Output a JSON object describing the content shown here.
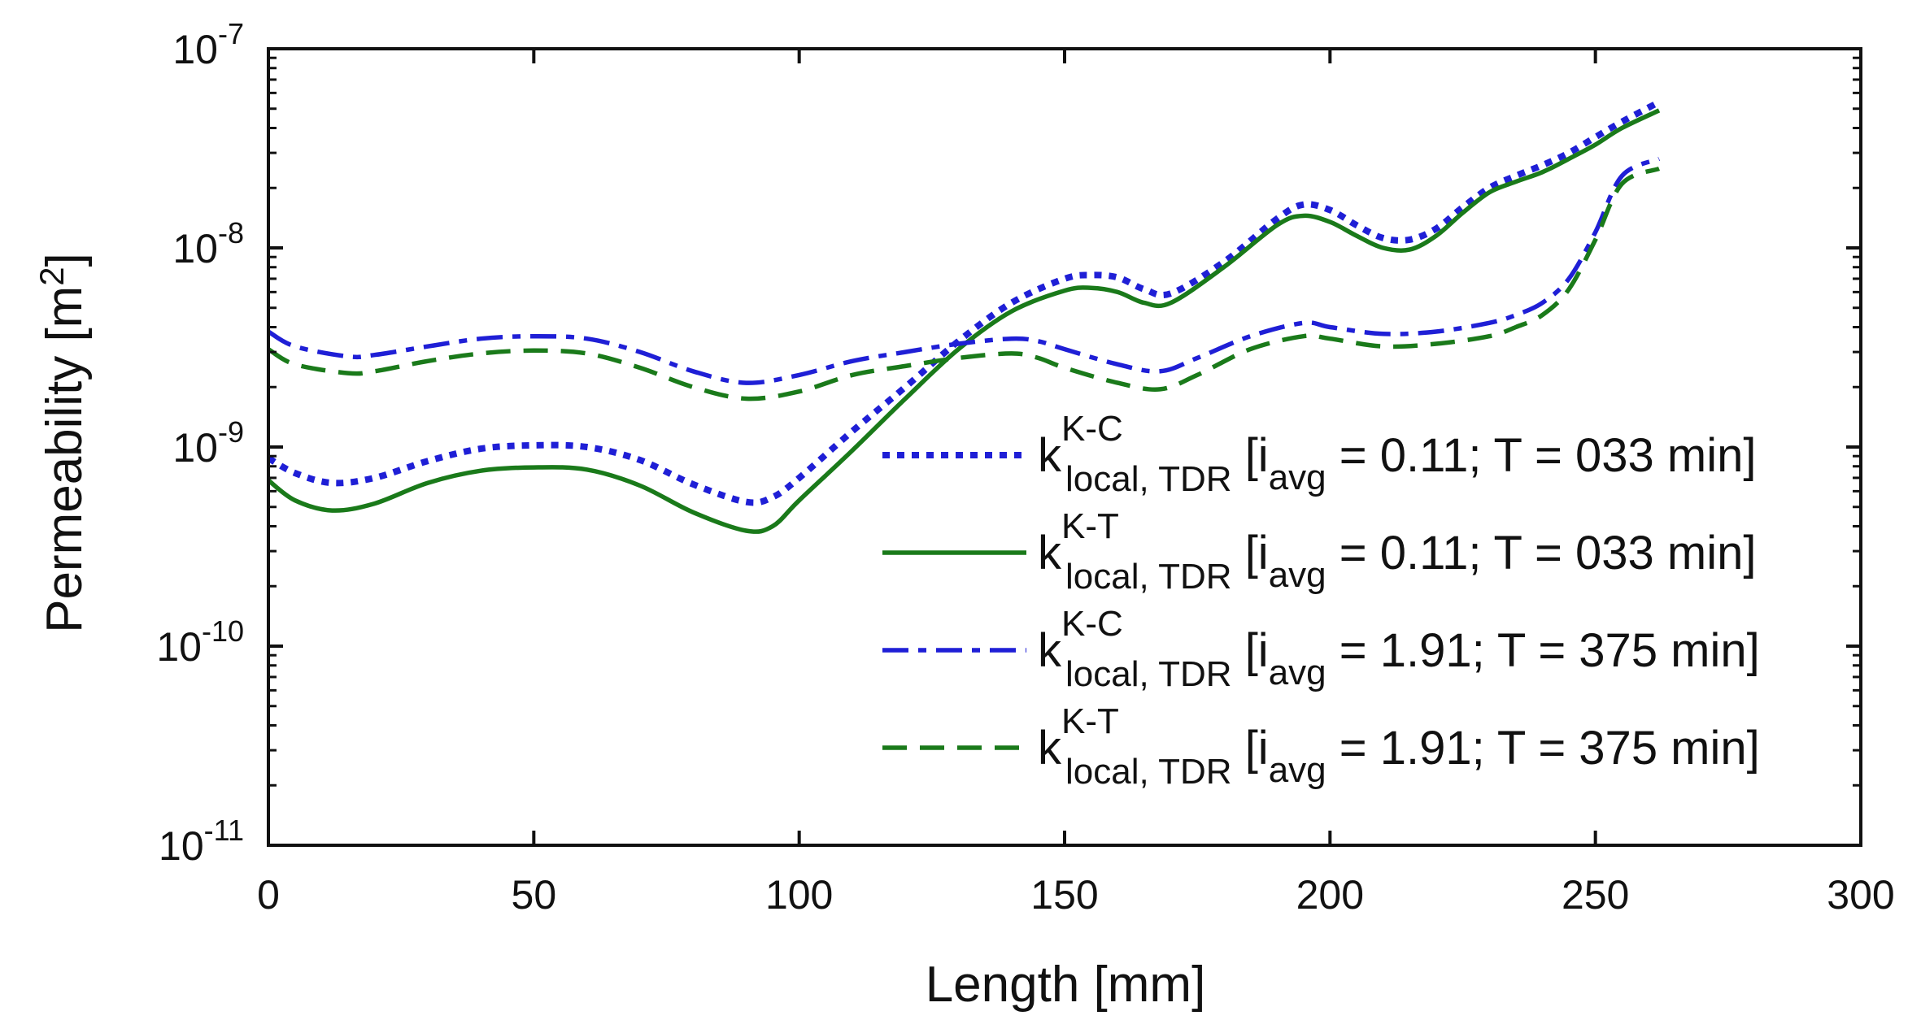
{
  "chart_data": {
    "type": "line",
    "xlabel": "Length [mm]",
    "ylabel_main": "Permeability [m",
    "ylabel_sup": "2",
    "ylabel_close": "]",
    "xlim": [
      0,
      300
    ],
    "ylim": [
      1e-11,
      1e-07
    ],
    "yscale": "log",
    "grid": false,
    "legend_position": "center-right",
    "x_ticks": [
      {
        "value": 0,
        "label": "0"
      },
      {
        "value": 50,
        "label": "50"
      },
      {
        "value": 100,
        "label": "100"
      },
      {
        "value": 150,
        "label": "150"
      },
      {
        "value": 200,
        "label": "200"
      },
      {
        "value": 250,
        "label": "250"
      },
      {
        "value": 300,
        "label": "300"
      }
    ],
    "y_ticks": [
      {
        "value": 1e-11,
        "base": "10",
        "exp": "-11"
      },
      {
        "value": 1e-10,
        "base": "10",
        "exp": "-10"
      },
      {
        "value": 1e-09,
        "base": "10",
        "exp": "-9"
      },
      {
        "value": 1e-08,
        "base": "10",
        "exp": "-8"
      },
      {
        "value": 1e-07,
        "base": "10",
        "exp": "-7"
      }
    ],
    "series": [
      {
        "name": "k K-C local, TDR [i avg = 0.11; T = 033 min]",
        "legend": {
          "k": "k",
          "sup": "K-C",
          "sub": "local, TDR",
          "open": " [i",
          "avg": "avg",
          "rest": " = 0.11; T = 033 min]"
        },
        "color": "#1f1fd6",
        "style": "dotted",
        "x": [
          0,
          5,
          12,
          20,
          30,
          40,
          50,
          60,
          70,
          80,
          90,
          95,
          100,
          110,
          120,
          130,
          140,
          150,
          155,
          160,
          165,
          170,
          180,
          190,
          195,
          200,
          205,
          210,
          215,
          220,
          225,
          230,
          235,
          240,
          245,
          250,
          255,
          262
        ],
        "y": [
          8.8e-10,
          7.4e-10,
          6.6e-10,
          7e-10,
          8.5e-10,
          9.8e-10,
          1.02e-09,
          1e-09,
          8.6e-10,
          6.5e-10,
          5.3e-10,
          5.6e-10,
          7e-10,
          1.2e-09,
          2e-09,
          3.4e-09,
          5.3e-09,
          7e-09,
          7.3e-09,
          7.1e-09,
          6.2e-09,
          5.9e-09,
          8.5e-09,
          1.4e-08,
          1.65e-08,
          1.55e-08,
          1.3e-08,
          1.12e-08,
          1.1e-08,
          1.25e-08,
          1.6e-08,
          2e-08,
          2.3e-08,
          2.6e-08,
          3e-08,
          3.6e-08,
          4.3e-08,
          5.4e-08
        ]
      },
      {
        "name": "k K-T local, TDR [i avg = 0.11; T = 033 min]",
        "legend": {
          "k": "k",
          "sup": "K-T",
          "sub": "local, TDR",
          "open": " [i",
          "avg": "avg",
          "rest": " = 0.11; T = 033 min]"
        },
        "color": "#1a7a1a",
        "style": "solid",
        "x": [
          0,
          5,
          12,
          20,
          30,
          40,
          50,
          60,
          70,
          80,
          90,
          95,
          100,
          110,
          120,
          130,
          140,
          150,
          155,
          160,
          165,
          170,
          180,
          190,
          195,
          200,
          205,
          210,
          215,
          220,
          225,
          230,
          235,
          240,
          245,
          250,
          255,
          262
        ],
        "y": [
          6.8e-10,
          5.4e-10,
          4.8e-10,
          5.2e-10,
          6.6e-10,
          7.6e-10,
          7.9e-10,
          7.7e-10,
          6.4e-10,
          4.7e-10,
          3.8e-10,
          4e-10,
          5.4e-10,
          9.6e-10,
          1.75e-09,
          3.1e-09,
          4.8e-09,
          6.1e-09,
          6.3e-09,
          6e-09,
          5.3e-09,
          5.3e-09,
          8e-09,
          1.3e-08,
          1.45e-08,
          1.35e-08,
          1.15e-08,
          1e-08,
          9.8e-09,
          1.15e-08,
          1.5e-08,
          1.9e-08,
          2.15e-08,
          2.4e-08,
          2.8e-08,
          3.3e-08,
          4e-08,
          4.9e-08
        ]
      },
      {
        "name": "k K-C local, TDR [i avg = 1.91; T = 375 min]",
        "legend": {
          "k": "k",
          "sup": "K-C",
          "sub": "local, TDR",
          "open": " [i",
          "avg": "avg",
          "rest": " = 1.91; T = 375 min]"
        },
        "color": "#1f1fd6",
        "style": "dashdot",
        "x": [
          0,
          5,
          15,
          20,
          30,
          40,
          50,
          60,
          70,
          80,
          90,
          100,
          110,
          120,
          130,
          140,
          145,
          150,
          160,
          168,
          175,
          185,
          195,
          200,
          210,
          220,
          230,
          235,
          240,
          245,
          250,
          255,
          262
        ],
        "y": [
          3.8e-09,
          3.2e-09,
          2.85e-09,
          2.9e-09,
          3.2e-09,
          3.5e-09,
          3.6e-09,
          3.5e-09,
          3e-09,
          2.4e-09,
          2.1e-09,
          2.3e-09,
          2.7e-09,
          3e-09,
          3.3e-09,
          3.5e-09,
          3.4e-09,
          3.1e-09,
          2.6e-09,
          2.4e-09,
          2.8e-09,
          3.6e-09,
          4.2e-09,
          4e-09,
          3.7e-09,
          3.8e-09,
          4.2e-09,
          4.6e-09,
          5.3e-09,
          7e-09,
          1.2e-08,
          2.3e-08,
          2.8e-08
        ]
      },
      {
        "name": "k K-T local, TDR [i avg = 1.91; T = 375 min]",
        "legend": {
          "k": "k",
          "sup": "K-T",
          "sub": "local, TDR",
          "open": " [i",
          "avg": "avg",
          "rest": " = 1.91; T = 375 min]"
        },
        "color": "#1a7a1a",
        "style": "dashed",
        "x": [
          0,
          5,
          15,
          20,
          30,
          40,
          50,
          60,
          70,
          80,
          90,
          100,
          110,
          120,
          130,
          140,
          145,
          150,
          160,
          168,
          175,
          185,
          195,
          200,
          210,
          220,
          230,
          235,
          240,
          245,
          250,
          255,
          262
        ],
        "y": [
          3.1e-09,
          2.6e-09,
          2.35e-09,
          2.4e-09,
          2.7e-09,
          2.95e-09,
          3.05e-09,
          2.95e-09,
          2.5e-09,
          2e-09,
          1.75e-09,
          1.9e-09,
          2.3e-09,
          2.55e-09,
          2.8e-09,
          2.95e-09,
          2.8e-09,
          2.5e-09,
          2.1e-09,
          1.95e-09,
          2.3e-09,
          3.1e-09,
          3.6e-09,
          3.5e-09,
          3.2e-09,
          3.3e-09,
          3.6e-09,
          4e-09,
          4.6e-09,
          6.2e-09,
          1.1e-08,
          2.1e-08,
          2.5e-08
        ]
      }
    ]
  }
}
